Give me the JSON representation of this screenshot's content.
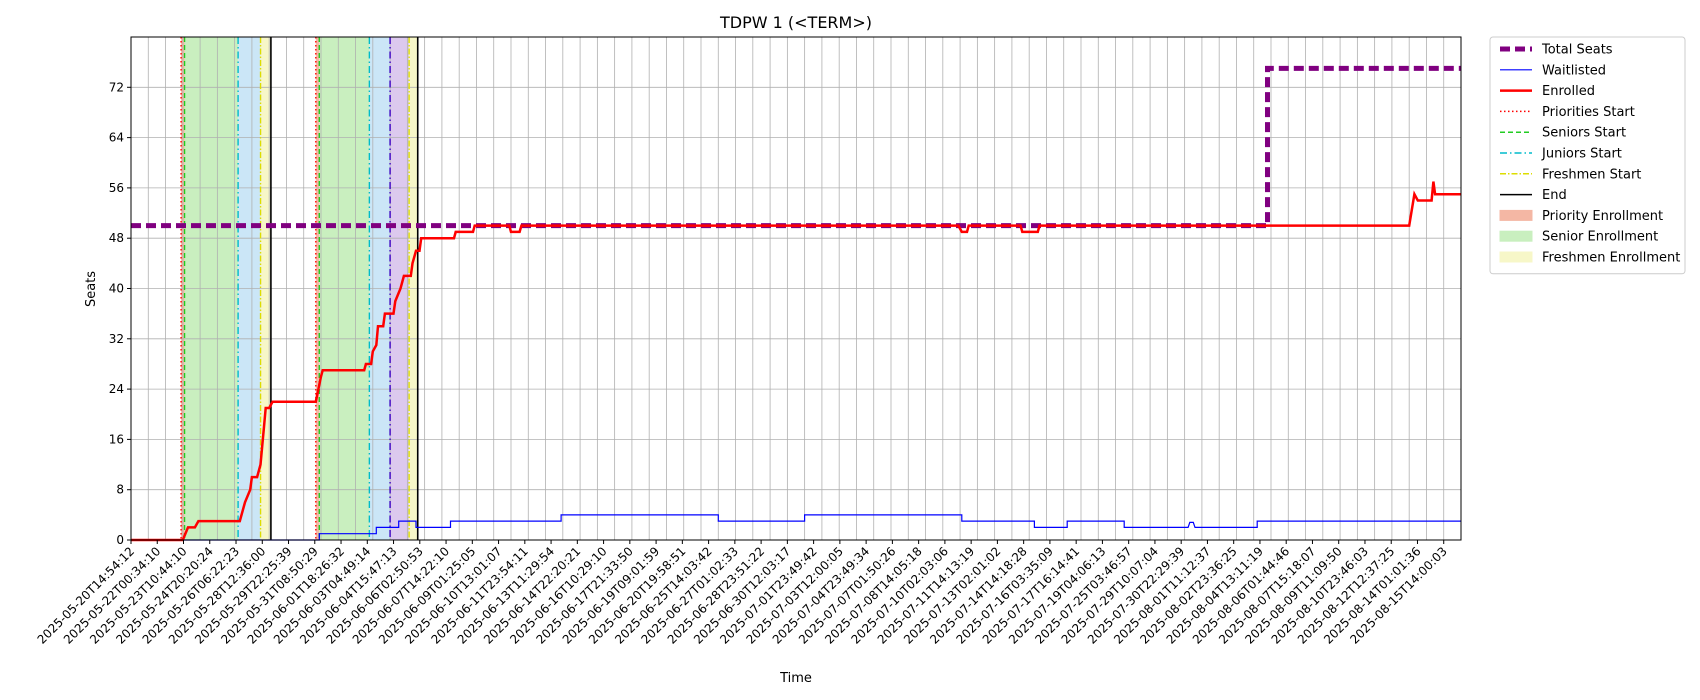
{
  "chart_data": {
    "type": "line",
    "title": "TDPW 1 (<TERM>)",
    "xlabel": "Time",
    "ylabel": "Seats",
    "ylim": [
      0,
      80
    ],
    "grid": true,
    "legend_placement": "outside-top-right",
    "y_ticks": [
      0,
      8,
      16,
      24,
      32,
      40,
      48,
      56,
      64,
      72
    ],
    "x_tick_labels": [
      "2025-05-20T14:54:12",
      "2025-05-22T00:34:10",
      "2025-05-23T10:44:10",
      "2025-05-24T20:20:24",
      "2025-05-26T06:22:23",
      "2025-05-28T12:36:00",
      "2025-05-29T22:25:39",
      "2025-05-31T08:50:29",
      "2025-06-01T18:26:32",
      "2025-06-03T04:49:14",
      "2025-06-04T15:47:13",
      "2025-06-06T02:50:53",
      "2025-06-07T14:22:10",
      "2025-06-09T01:25:05",
      "2025-06-10T13:01:07",
      "2025-06-11T23:54:11",
      "2025-06-13T11:29:54",
      "2025-06-14T22:20:21",
      "2025-06-16T10:29:10",
      "2025-06-17T21:33:50",
      "2025-06-19T09:01:59",
      "2025-06-20T19:58:51",
      "2025-06-25T14:03:42",
      "2025-06-27T01:02:33",
      "2025-06-28T23:51:22",
      "2025-06-30T12:03:17",
      "2025-07-01T23:49:42",
      "2025-07-03T12:00:05",
      "2025-07-04T23:49:34",
      "2025-07-07T01:50:26",
      "2025-07-08T14:05:18",
      "2025-07-10T02:03:06",
      "2025-07-11T14:13:19",
      "2025-07-13T02:01:02",
      "2025-07-14T14:18:28",
      "2025-07-16T03:35:09",
      "2025-07-17T16:14:41",
      "2025-07-19T04:06:13",
      "2025-07-25T03:46:57",
      "2025-07-29T10:07:04",
      "2025-07-30T22:29:39",
      "2025-08-01T11:12:37",
      "2025-08-02T23:36:25",
      "2025-08-04T13:11:19",
      "2025-08-06T01:44:46",
      "2025-08-07T15:18:07",
      "2025-08-09T11:09:50",
      "2025-08-10T23:46:03",
      "2025-08-12T12:37:25",
      "2025-08-14T01:01:36",
      "2025-08-15T14:00:03"
    ],
    "x_range_index": [
      0,
      77
    ],
    "series": [
      {
        "name": "Total Seats",
        "color": "#800080",
        "points": [
          [
            0,
            50
          ],
          [
            65.8,
            50
          ],
          [
            65.8,
            75
          ],
          [
            77,
            75
          ]
        ]
      },
      {
        "name": "Waitlisted",
        "color": "#0000ff",
        "points": [
          [
            0,
            0
          ],
          [
            10.9,
            0
          ],
          [
            10.9,
            1
          ],
          [
            14.2,
            1
          ],
          [
            14.2,
            2
          ],
          [
            15.5,
            2
          ],
          [
            15.5,
            3
          ],
          [
            16.5,
            3
          ],
          [
            16.5,
            2
          ],
          [
            18.5,
            2
          ],
          [
            18.5,
            3
          ],
          [
            24.9,
            3
          ],
          [
            24.9,
            4
          ],
          [
            34,
            4
          ],
          [
            34,
            3
          ],
          [
            39,
            3
          ],
          [
            39,
            4
          ],
          [
            48.1,
            4
          ],
          [
            48.1,
            3
          ],
          [
            52.3,
            3
          ],
          [
            52.3,
            2
          ],
          [
            54.2,
            2
          ],
          [
            54.2,
            3
          ],
          [
            57.5,
            3
          ],
          [
            57.5,
            2
          ],
          [
            61.2,
            2
          ],
          [
            61.3,
            2.8
          ],
          [
            61.5,
            2.8
          ],
          [
            61.6,
            2
          ],
          [
            65.2,
            2
          ],
          [
            65.2,
            3
          ],
          [
            77,
            3
          ]
        ]
      },
      {
        "name": "Enrolled",
        "color": "#ff0000",
        "points": [
          [
            0,
            0
          ],
          [
            3,
            0
          ],
          [
            3.3,
            2
          ],
          [
            3.7,
            2
          ],
          [
            3.9,
            3
          ],
          [
            6.3,
            3
          ],
          [
            6.6,
            6
          ],
          [
            6.9,
            8
          ],
          [
            7,
            10
          ],
          [
            7.3,
            10
          ],
          [
            7.5,
            12
          ],
          [
            7.7,
            18
          ],
          [
            7.8,
            21
          ],
          [
            8,
            21
          ],
          [
            8.2,
            22
          ],
          [
            10.7,
            22
          ],
          [
            11,
            26
          ],
          [
            11.1,
            27
          ],
          [
            13.5,
            27
          ],
          [
            13.6,
            28
          ],
          [
            13.9,
            28
          ],
          [
            14,
            30
          ],
          [
            14.2,
            31
          ],
          [
            14.3,
            34
          ],
          [
            14.6,
            34
          ],
          [
            14.7,
            36
          ],
          [
            15.2,
            36
          ],
          [
            15.3,
            38
          ],
          [
            15.6,
            40
          ],
          [
            15.8,
            42
          ],
          [
            16.2,
            42
          ],
          [
            16.3,
            44
          ],
          [
            16.5,
            46
          ],
          [
            16.7,
            46
          ],
          [
            16.8,
            48
          ],
          [
            18.7,
            48
          ],
          [
            18.8,
            49
          ],
          [
            19.8,
            49
          ],
          [
            19.9,
            50
          ],
          [
            21.9,
            50
          ],
          [
            22,
            49
          ],
          [
            22.5,
            49
          ],
          [
            22.6,
            50
          ],
          [
            47.9,
            50
          ],
          [
            48.1,
            49
          ],
          [
            48.4,
            49
          ],
          [
            48.5,
            50
          ],
          [
            51.5,
            50
          ],
          [
            51.6,
            49
          ],
          [
            52.5,
            49
          ],
          [
            52.6,
            50
          ],
          [
            74,
            50
          ],
          [
            74.3,
            55
          ],
          [
            74.5,
            54
          ],
          [
            75.3,
            54
          ],
          [
            75.4,
            57
          ],
          [
            75.5,
            55
          ],
          [
            77,
            55
          ]
        ]
      }
    ],
    "vertical_markers": [
      {
        "name": "Priorities Start",
        "color": "#ff0000",
        "x": [
          2.9,
          10.7
        ]
      },
      {
        "name": "Seniors Start",
        "color": "#22cc22",
        "x": [
          3.1,
          10.9
        ]
      },
      {
        "name": "Juniors Start",
        "color": "#00bbcc",
        "x": [
          6.2,
          13.8
        ]
      },
      {
        "name": "Freshmen Start",
        "color": "#dddd00",
        "x": [
          7.5,
          16.1
        ]
      },
      {
        "name": "End",
        "color": "#000000",
        "x": [
          8.1,
          16.6
        ]
      }
    ],
    "extra_marker": {
      "color": "#3a00c0",
      "x": 15
    },
    "spans": [
      {
        "name": "Priority Enrollment",
        "color": "#f4b7a4",
        "ranges": [
          [
            2.9,
            3.1
          ],
          [
            10.7,
            10.9
          ]
        ]
      },
      {
        "name": "Senior Enrollment",
        "color": "#c9efbf",
        "ranges": [
          [
            3.1,
            6.2
          ],
          [
            10.9,
            13.8
          ]
        ]
      },
      {
        "name": "Freshmen Enrollment",
        "color": "#f7f7c8",
        "ranges": [
          [
            7.5,
            8.1
          ],
          [
            16.1,
            16.6
          ]
        ]
      }
    ],
    "other_spans": [
      {
        "color": "#cbe6f7",
        "ranges": [
          [
            6.2,
            7.5
          ],
          [
            13.8,
            15
          ]
        ]
      },
      {
        "color": "#dcc9ee",
        "ranges": [
          [
            15,
            16.1
          ]
        ]
      }
    ],
    "legend": [
      {
        "label": "Total Seats",
        "kind": "line",
        "color": "#800080",
        "dash": "10,5",
        "width": 5
      },
      {
        "label": "Waitlisted",
        "kind": "line",
        "color": "#0000ff",
        "dash": "",
        "width": 1.2
      },
      {
        "label": "Enrolled",
        "kind": "line",
        "color": "#ff0000",
        "dash": "",
        "width": 2.5
      },
      {
        "label": "Priorities Start",
        "kind": "line",
        "color": "#ff0000",
        "dash": "1.5,2.5",
        "width": 1.5
      },
      {
        "label": "Seniors Start",
        "kind": "line",
        "color": "#22cc22",
        "dash": "5,3",
        "width": 1.5
      },
      {
        "label": "Juniors Start",
        "kind": "line",
        "color": "#00bbcc",
        "dash": "7,3,1.5,3",
        "width": 1.5
      },
      {
        "label": "Freshmen Start",
        "kind": "line",
        "color": "#dddd00",
        "dash": "6,2,1.5,2",
        "width": 1.5
      },
      {
        "label": "End",
        "kind": "line",
        "color": "#000000",
        "dash": "",
        "width": 1.5
      },
      {
        "label": "Priority Enrollment",
        "kind": "patch",
        "color": "#f4b7a4"
      },
      {
        "label": "Senior Enrollment",
        "kind": "patch",
        "color": "#c9efbf"
      },
      {
        "label": "Freshmen Enrollment",
        "kind": "patch",
        "color": "#f7f7c8"
      }
    ]
  }
}
